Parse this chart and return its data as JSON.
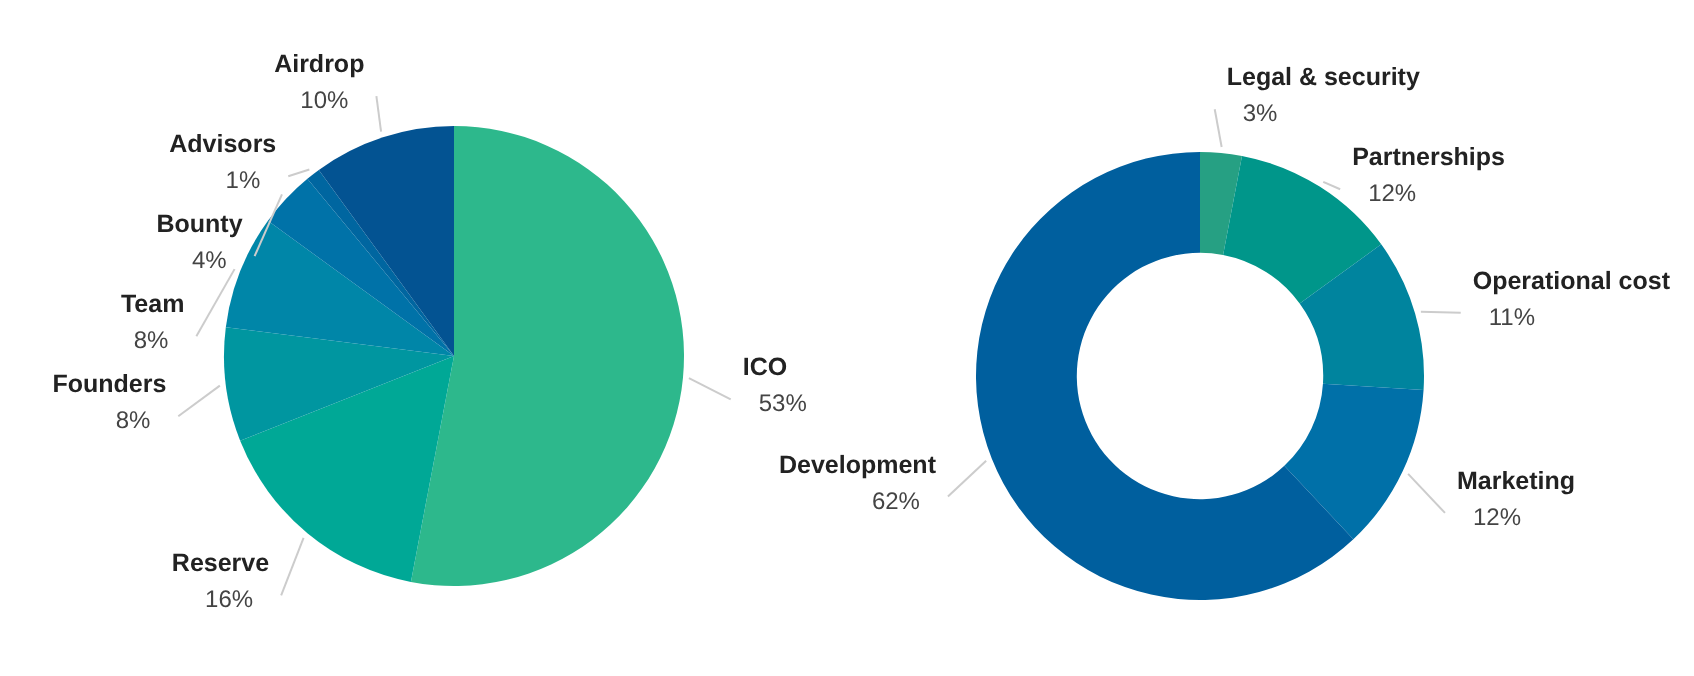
{
  "chart_data": [
    {
      "type": "pie",
      "categories": [
        "ICO",
        "Reserve",
        "Founders",
        "Team",
        "Bounty",
        "Advisors",
        "Airdrop"
      ],
      "values": [
        53,
        16,
        8,
        8,
        4,
        1,
        10
      ],
      "colors": [
        "#2db88c",
        "#00a896",
        "#0096a0",
        "#0086a8",
        "#0072a8",
        "#0066a0",
        "#035392"
      ],
      "value_labels": [
        "53%",
        "16%",
        "8%",
        "8%",
        "4%",
        "1%",
        "10%"
      ]
    },
    {
      "type": "donut",
      "categories": [
        "Legal & security",
        "Partnerships",
        "Operational cost",
        "Marketing",
        "Development"
      ],
      "values": [
        3,
        12,
        11,
        12,
        62
      ],
      "colors": [
        "#26a083",
        "#00968a",
        "#00849e",
        "#0070a8",
        "#005f9e"
      ],
      "value_labels": [
        "3%",
        "12%",
        "11%",
        "12%",
        "62%"
      ]
    }
  ]
}
